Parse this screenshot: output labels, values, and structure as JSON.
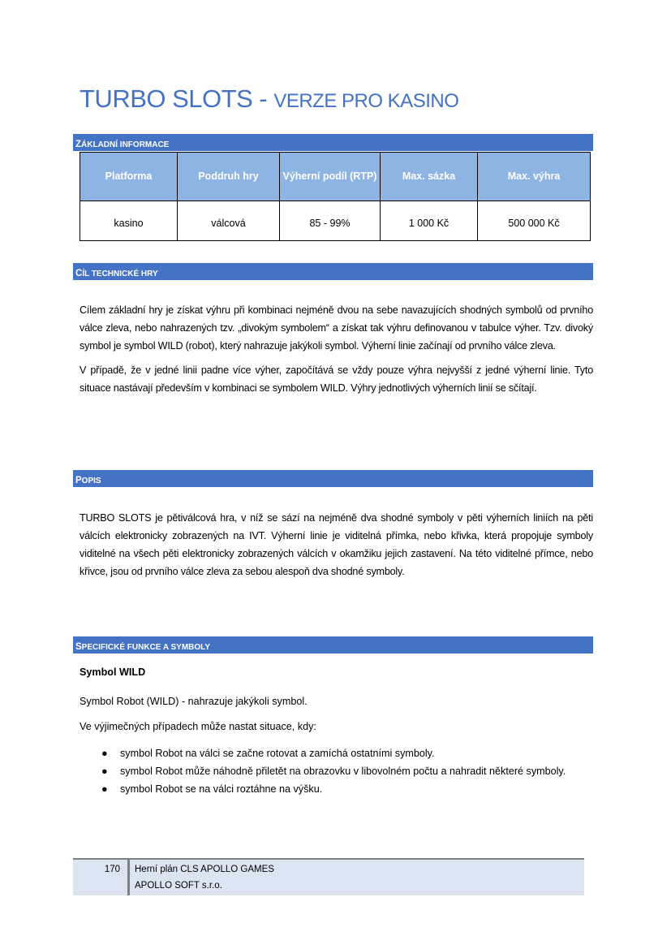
{
  "title": {
    "main": "TURBO SLOTS - ",
    "sub": "VERZE PRO KASINO"
  },
  "colors": {
    "accent": "#4472c4",
    "table_header": "#8eb4e3",
    "footer_bg": "#dbe5f1"
  },
  "sections": {
    "basic": {
      "first": "Z",
      "rest": "ákladní informace"
    },
    "goal": {
      "first": "C",
      "rest": "íl technické hry"
    },
    "description": {
      "first": "P",
      "rest": "opis"
    },
    "features": {
      "first": "S",
      "rest": "pecifické funkce a symboly"
    }
  },
  "table": {
    "headers": [
      "Platforma",
      "Poddruh hry",
      "Výherní podíl (RTP)",
      "Max. sázka",
      "Max. výhra"
    ],
    "row": [
      "kasino",
      "válcová",
      "85 - 99%",
      "1 000 Kč",
      "500 000 Kč"
    ]
  },
  "goal_paragraphs": [
    "Cílem základní hry je získat výhru při kombinaci nejméně dvou na sebe navazujících shodných symbolů od prvního válce zleva, nebo nahrazených tzv. „divokým symbolem“ a získat tak výhru definovanou v tabulce výher. Tzv. divoký symbol je symbol WILD (robot), který nahrazuje jakýkoli symbol. Výherní linie začínají od prvního válce zleva.",
    "V případě, že v jedné linii padne více výher, započítává se vždy pouze výhra nejvyšší z jedné výherní linie. Tyto situace nastávají především v kombinaci se symbolem WILD. Výhry jednotlivých výherních linií se sčítají."
  ],
  "description_paragraph": "TURBO SLOTS je pětiválcová hra, v níž se sází na nejméně dva shodné symboly v pěti výherních liniích na pěti válcích elektronicky zobrazených na IVT. Výherní linie je viditelná přímka, nebo křivka, která propojuje symboly viditelné na všech pěti elektronicky zobrazených válcích v okamžiku jejich zastavení. Na této viditelné přímce, nebo křivce, jsou od prvního válce zleva za sebou alespoň dva shodné symboly.",
  "features": {
    "heading": "Symbol WILD",
    "line1": "Symbol Robot (WILD) - nahrazuje jakýkoli symbol.",
    "line2": "Ve výjimečných případech může nastat situace, kdy:",
    "bullets": [
      "symbol Robot na válci se začne rotovat a zamíchá ostatními symboly.",
      "symbol Robot může náhodně přiletět na obrazovku v libovolném počtu a nahradit některé symboly.",
      "symbol Robot se na válci roztáhne na výšku."
    ],
    "bullet_glyph": "●"
  },
  "footer": {
    "page": "170",
    "line1": "Herní plán CLS APOLLO GAMES",
    "line2": "APOLLO SOFT s.r.o."
  }
}
